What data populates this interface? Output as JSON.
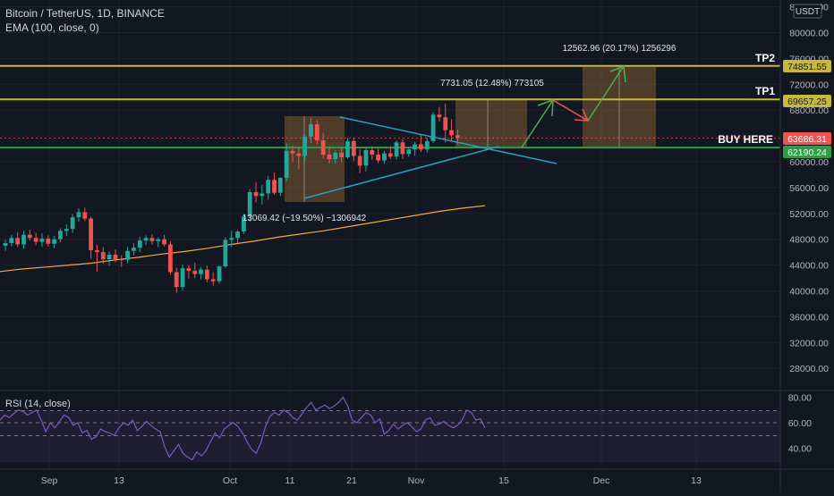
{
  "header": {
    "title": "Bitcoin / TetherUS, 1D, BINANCE",
    "indicator": "EMA (100, close, 0)",
    "currency": "USDT"
  },
  "rsi": {
    "label": "RSI (14, close)",
    "levels": [
      "80.00",
      "60.00",
      "40.00"
    ],
    "values": [
      62,
      66,
      64,
      67,
      70,
      69,
      66,
      68,
      70,
      62,
      53,
      60,
      56,
      61,
      66,
      64,
      58,
      60,
      52,
      54,
      47,
      49,
      55,
      53,
      52,
      50,
      56,
      60,
      58,
      62,
      54,
      57,
      61,
      58,
      55,
      53,
      41,
      33,
      38,
      43,
      36,
      33,
      31,
      37,
      34,
      38,
      45,
      52,
      48,
      55,
      58,
      60,
      57,
      52,
      45,
      39,
      36,
      44,
      57,
      65,
      68,
      66,
      70,
      68,
      64,
      62,
      67,
      72,
      76,
      70,
      72,
      74,
      71,
      73,
      76,
      80,
      73,
      62,
      60,
      64,
      68,
      66,
      60,
      63,
      51,
      54,
      59,
      55,
      58,
      60,
      57,
      53,
      55,
      62,
      64,
      58,
      59,
      61,
      58,
      56,
      58,
      62,
      70,
      68,
      62,
      63,
      56
    ]
  },
  "axes": {
    "price_ticks": [
      "84000.00",
      "80000.00",
      "76000.00",
      "72000.00",
      "68000.00",
      "64000.00",
      "60000.00",
      "56000.00",
      "52000.00",
      "48000.00",
      "44000.00",
      "40000.00",
      "36000.00",
      "32000.00",
      "28000.00"
    ],
    "date_ticks": [
      "Sep",
      "13",
      "Oct",
      "11",
      "21",
      "Nov",
      "15",
      "Dec",
      "13"
    ]
  },
  "chart_data": {
    "type": "candlestick",
    "symbol": "Bitcoin / TetherUS",
    "interval": "1D",
    "exchange": "BINANCE",
    "y_range": [
      24000,
      86000
    ],
    "x_ticks": [
      "Sep",
      "13",
      "Oct",
      "11",
      "21",
      "Nov",
      "15",
      "Dec",
      "13"
    ],
    "candles": [
      {
        "o": 47000,
        "h": 47900,
        "l": 46200,
        "c": 47400
      },
      {
        "o": 47400,
        "h": 48700,
        "l": 46900,
        "c": 48200
      },
      {
        "o": 48200,
        "h": 49100,
        "l": 46800,
        "c": 47200
      },
      {
        "o": 47200,
        "h": 49300,
        "l": 46500,
        "c": 48700
      },
      {
        "o": 48700,
        "h": 49500,
        "l": 47800,
        "c": 48200
      },
      {
        "o": 48200,
        "h": 49000,
        "l": 47100,
        "c": 47600
      },
      {
        "o": 47600,
        "h": 48900,
        "l": 46800,
        "c": 48100
      },
      {
        "o": 48100,
        "h": 48600,
        "l": 46900,
        "c": 47300
      },
      {
        "o": 47300,
        "h": 48500,
        "l": 46600,
        "c": 48000
      },
      {
        "o": 48000,
        "h": 49700,
        "l": 47500,
        "c": 49300
      },
      {
        "o": 49300,
        "h": 50300,
        "l": 48500,
        "c": 49600
      },
      {
        "o": 49600,
        "h": 51900,
        "l": 49000,
        "c": 51400
      },
      {
        "o": 51400,
        "h": 52800,
        "l": 50700,
        "c": 52200
      },
      {
        "o": 52200,
        "h": 52900,
        "l": 50800,
        "c": 51200
      },
      {
        "o": 51200,
        "h": 51500,
        "l": 45000,
        "c": 46300
      },
      {
        "o": 46300,
        "h": 47100,
        "l": 43000,
        "c": 46000
      },
      {
        "o": 46000,
        "h": 46800,
        "l": 44200,
        "c": 44900
      },
      {
        "o": 44900,
        "h": 46100,
        "l": 43900,
        "c": 45600
      },
      {
        "o": 45600,
        "h": 46400,
        "l": 44400,
        "c": 44900
      },
      {
        "o": 44900,
        "h": 45500,
        "l": 43700,
        "c": 44800
      },
      {
        "o": 44800,
        "h": 46800,
        "l": 44300,
        "c": 46200
      },
      {
        "o": 46200,
        "h": 47400,
        "l": 45500,
        "c": 46700
      },
      {
        "o": 46700,
        "h": 48400,
        "l": 46000,
        "c": 47800
      },
      {
        "o": 47800,
        "h": 48600,
        "l": 47100,
        "c": 48200
      },
      {
        "o": 48200,
        "h": 48800,
        "l": 47200,
        "c": 47700
      },
      {
        "o": 47700,
        "h": 48300,
        "l": 46800,
        "c": 48000
      },
      {
        "o": 48000,
        "h": 48700,
        "l": 46900,
        "c": 47200
      },
      {
        "o": 47200,
        "h": 47700,
        "l": 42500,
        "c": 42900
      },
      {
        "o": 42900,
        "h": 43600,
        "l": 39700,
        "c": 40600
      },
      {
        "o": 40600,
        "h": 44100,
        "l": 40100,
        "c": 43500
      },
      {
        "o": 43500,
        "h": 44000,
        "l": 41900,
        "c": 43100
      },
      {
        "o": 43100,
        "h": 44400,
        "l": 42000,
        "c": 42600
      },
      {
        "o": 42600,
        "h": 43700,
        "l": 41800,
        "c": 43300
      },
      {
        "o": 43300,
        "h": 43900,
        "l": 41300,
        "c": 41800
      },
      {
        "o": 41800,
        "h": 42900,
        "l": 40800,
        "c": 41500
      },
      {
        "o": 41500,
        "h": 43900,
        "l": 41100,
        "c": 43800
      },
      {
        "o": 43800,
        "h": 48300,
        "l": 43600,
        "c": 47900
      },
      {
        "o": 47900,
        "h": 49300,
        "l": 46800,
        "c": 48200
      },
      {
        "o": 48200,
        "h": 49400,
        "l": 47400,
        "c": 49200
      },
      {
        "o": 49200,
        "h": 51900,
        "l": 48800,
        "c": 51500
      },
      {
        "o": 51500,
        "h": 55800,
        "l": 50700,
        "c": 55300
      },
      {
        "o": 55300,
        "h": 56800,
        "l": 53700,
        "c": 54700
      },
      {
        "o": 54700,
        "h": 56400,
        "l": 53400,
        "c": 55100
      },
      {
        "o": 55100,
        "h": 57800,
        "l": 54100,
        "c": 57200
      },
      {
        "o": 57200,
        "h": 58300,
        "l": 54900,
        "c": 55200
      },
      {
        "o": 55200,
        "h": 57600,
        "l": 54700,
        "c": 57500
      },
      {
        "o": 57500,
        "h": 62800,
        "l": 57000,
        "c": 61700
      },
      {
        "o": 61700,
        "h": 62500,
        "l": 60000,
        "c": 61300
      },
      {
        "o": 61300,
        "h": 62200,
        "l": 58800,
        "c": 60900
      },
      {
        "o": 60900,
        "h": 64200,
        "l": 60200,
        "c": 63900
      },
      {
        "o": 63900,
        "h": 66800,
        "l": 62900,
        "c": 65800
      },
      {
        "o": 65800,
        "h": 66400,
        "l": 62700,
        "c": 63300
      },
      {
        "o": 63300,
        "h": 64500,
        "l": 60500,
        "c": 61100
      },
      {
        "o": 61100,
        "h": 62400,
        "l": 59800,
        "c": 60400
      },
      {
        "o": 60400,
        "h": 61800,
        "l": 59700,
        "c": 61400
      },
      {
        "o": 61400,
        "h": 62300,
        "l": 60000,
        "c": 60700
      },
      {
        "o": 60700,
        "h": 63700,
        "l": 60500,
        "c": 63200
      },
      {
        "o": 63200,
        "h": 63700,
        "l": 60100,
        "c": 60900
      },
      {
        "o": 60900,
        "h": 61900,
        "l": 58200,
        "c": 59400
      },
      {
        "o": 59400,
        "h": 62200,
        "l": 58500,
        "c": 61800
      },
      {
        "o": 61800,
        "h": 62400,
        "l": 60300,
        "c": 61100
      },
      {
        "o": 61100,
        "h": 62000,
        "l": 59800,
        "c": 60200
      },
      {
        "o": 60200,
        "h": 61700,
        "l": 59700,
        "c": 61300
      },
      {
        "o": 61300,
        "h": 62400,
        "l": 60400,
        "c": 60800
      },
      {
        "o": 60800,
        "h": 63300,
        "l": 60300,
        "c": 63000
      },
      {
        "o": 63000,
        "h": 63500,
        "l": 60400,
        "c": 61200
      },
      {
        "o": 61200,
        "h": 62300,
        "l": 60800,
        "c": 61900
      },
      {
        "o": 61900,
        "h": 63100,
        "l": 60900,
        "c": 62700
      },
      {
        "o": 62700,
        "h": 64200,
        "l": 61500,
        "c": 61900
      },
      {
        "o": 61900,
        "h": 63700,
        "l": 61400,
        "c": 63200
      },
      {
        "o": 63200,
        "h": 67700,
        "l": 62900,
        "c": 67300
      },
      {
        "o": 67300,
        "h": 68500,
        "l": 66200,
        "c": 66900
      },
      {
        "o": 66900,
        "h": 69000,
        "l": 63000,
        "c": 64900
      },
      {
        "o": 64900,
        "h": 66600,
        "l": 63100,
        "c": 64100
      },
      {
        "o": 64100,
        "h": 65000,
        "l": 62700,
        "c": 63686
      }
    ],
    "ema100": [
      43000,
      43400,
      43700,
      44000,
      44300,
      44800,
      45200,
      45700,
      46100,
      46600,
      47200,
      47700,
      48300,
      48800,
      49300,
      49900,
      50500,
      51100,
      51700,
      52300,
      52800,
      53200
    ],
    "horizontal_levels": [
      {
        "name": "TP2",
        "price": 74851.55,
        "color": "#c8b93a"
      },
      {
        "name": "TP1",
        "price": 69657.25,
        "color": "#c8b93a"
      },
      {
        "name": "BUY HERE",
        "price": 62190.24,
        "color": "#2e9e45"
      },
      {
        "name": "last",
        "price": 63686.31,
        "color": "#ef5350"
      }
    ],
    "annotations": [
      {
        "text": "12562.96 (20.17%) 1256296"
      },
      {
        "text": "7731.05 (12.48%) 773105"
      },
      {
        "text": "13069.42 (−19.50%) −1306942"
      }
    ],
    "price_labels": [
      "74851.55",
      "69657.25",
      "63686.31",
      "62190.24"
    ],
    "level_labels": [
      "TP2",
      "TP1",
      "BUY HERE"
    ]
  }
}
